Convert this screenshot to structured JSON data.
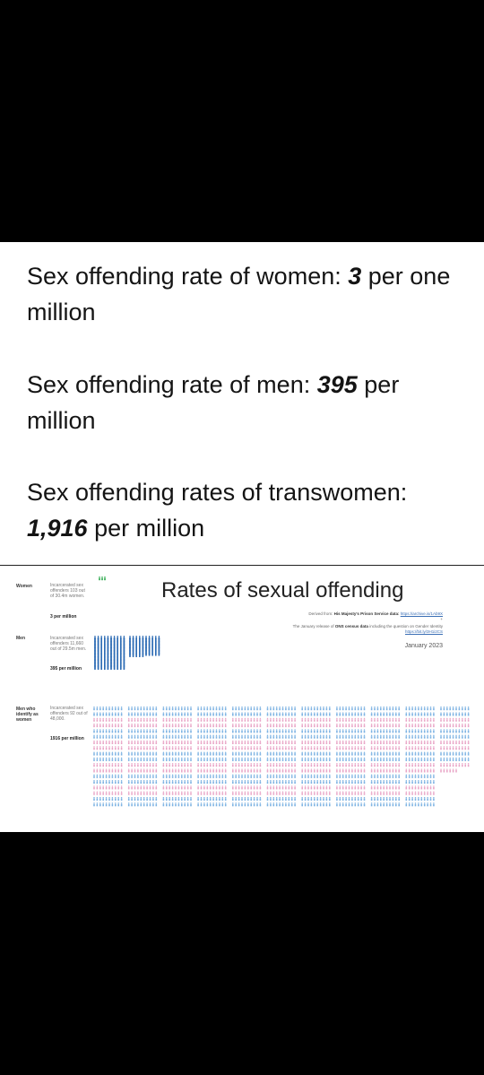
{
  "post": {
    "women_line": {
      "prefix": "Sex offending rate of women: ",
      "value": "3",
      "suffix": " per one million"
    },
    "men_line": {
      "prefix": "Sex offending rate of men: ",
      "value": "395",
      "suffix": " per million"
    },
    "transwomen_line": {
      "prefix": "Sex offending rates of transwomen: ",
      "value": "1,916",
      "suffix": " per million"
    }
  },
  "infographic": {
    "title": "Rates of sexual offending",
    "source_prefix": "Derived from: ",
    "source_name": "His Majesty's Prison Service data:",
    "source_link": "https://archive.is/1Ab9X",
    "plus": "+",
    "census_prefix": "The January release of ",
    "census_name": "ONS census data",
    "census_suffix": " including the question on Gender Identity",
    "census_link": "https://bit.ly/3H1i2CS",
    "period": "January 2023",
    "rows": [
      {
        "label": "Women",
        "desc": "Incarcerated sex offenders 103 out of 30.4m women.",
        "rate": "3 per million"
      },
      {
        "label": "Men",
        "desc": "Incarcerated sex offenders 11,660 out of 29.5m men.",
        "rate": "395 per million"
      },
      {
        "label": "Men who identify as women",
        "desc": "Incarcerated sex offenders 92 out of 48,000.",
        "rate": "1916 per million"
      }
    ]
  },
  "chart_data": {
    "type": "pictogram",
    "title": "Rates of sexual offending",
    "unit": "incarcerated sex offenders per million",
    "categories": [
      "Women",
      "Men",
      "Men who identify as women"
    ],
    "values": [
      3,
      395,
      1916
    ],
    "colors": {
      "women": "#2aa84a",
      "men": "#2f6db5",
      "trans_pink": "#e9a6c7",
      "trans_blue": "#7fb4e3"
    }
  }
}
